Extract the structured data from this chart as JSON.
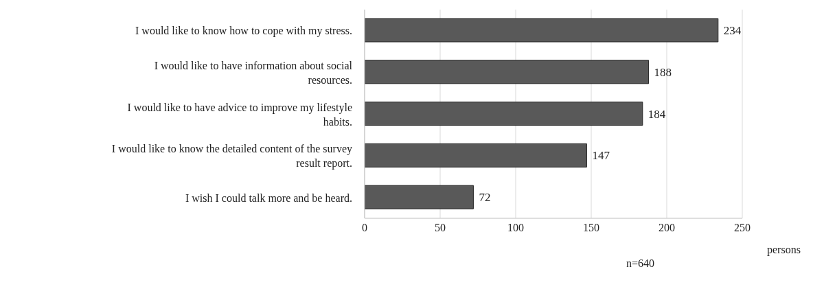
{
  "chart_data": {
    "type": "bar",
    "orientation": "horizontal",
    "categories": [
      "I would like to know how to cope with my stress.",
      "I would like to have information about social resources.",
      "I would like to have advice to improve my lifestyle habits.",
      "I would like to know the detailed content of the survey result report.",
      "I wish I could talk more and be heard."
    ],
    "values": [
      234,
      188,
      184,
      147,
      72
    ],
    "color": "#595959",
    "xlim": [
      0,
      250
    ],
    "xticks": [
      0,
      50,
      100,
      150,
      200,
      250
    ],
    "grid": "x",
    "data_labels": true,
    "xlabel": "persons",
    "annotations": [
      "n=640"
    ]
  }
}
